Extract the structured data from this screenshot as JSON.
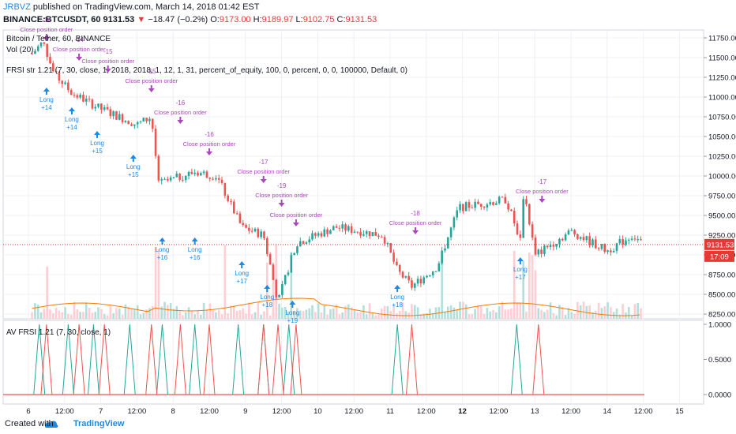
{
  "header": {
    "user": "JRBVZ",
    "published": "published on TradingView.com, March 14, 2018 01:42 EST",
    "symbol": "BINANCE:BTCUSDT, 60",
    "last": "9131.53",
    "change": "−18.47 (−0.2%)",
    "o_label": "O:",
    "o": "9173.00",
    "h_label": "H:",
    "h": "9189.97",
    "l_label": "L:",
    "l": "9102.75",
    "c_label": "C:",
    "c": "9131.53"
  },
  "overlays": {
    "pair": "Bitcoin / Tether, 60, BINANCE",
    "vol": "Vol (20)",
    "strategy": "FRSI str 1.21 (7, 30, close, 1, 2018, 2018, 1, 12, 1, 31, percent_of_equity, 100, 0, percent, 0, 0, 100000, Default, 0)",
    "indicator": "AV FRSI 1.21 (7, 30, close, 1)"
  },
  "price_axis": {
    "ticks": [
      "11750.00",
      "11500.00",
      "11250.00",
      "11000.00",
      "10750.00",
      "10500.00",
      "10250.00",
      "10000.00",
      "9750.00",
      "9500.00",
      "9250.00",
      "9000.00",
      "8750.00",
      "8500.00",
      "8250.00"
    ],
    "current_price": "9131.53",
    "countdown": "17:09"
  },
  "osc_axis": {
    "ticks": [
      "1.0000",
      "0.5000",
      "0.0000"
    ]
  },
  "time_axis": [
    "6",
    "12:00",
    "7",
    "12:00",
    "8",
    "12:00",
    "9",
    "12:00",
    "10",
    "12:00",
    "11",
    "12:00",
    "12",
    "12:00",
    "13",
    "12:00",
    "14",
    "12:00",
    "15"
  ],
  "chart_data": {
    "type": "candlestick",
    "title": "Bitcoin / Tether, 60, BINANCE",
    "ylim": [
      8100,
      11900
    ],
    "price_path_keypoints": [
      {
        "day": 6.05,
        "price": 11550
      },
      {
        "day": 6.2,
        "price": 11700
      },
      {
        "day": 6.35,
        "price": 11300
      },
      {
        "day": 6.6,
        "price": 11050
      },
      {
        "day": 7.0,
        "price": 10850
      },
      {
        "day": 7.5,
        "price": 10650
      },
      {
        "day": 7.7,
        "price": 10750
      },
      {
        "day": 7.8,
        "price": 9900
      },
      {
        "day": 8.3,
        "price": 10050
      },
      {
        "day": 8.6,
        "price": 10000
      },
      {
        "day": 8.95,
        "price": 9350
      },
      {
        "day": 9.25,
        "price": 9250
      },
      {
        "day": 9.45,
        "price": 8400
      },
      {
        "day": 9.7,
        "price": 9150
      },
      {
        "day": 10.25,
        "price": 9350
      },
      {
        "day": 10.9,
        "price": 9250
      },
      {
        "day": 11.1,
        "price": 8800
      },
      {
        "day": 11.3,
        "price": 8600
      },
      {
        "day": 11.65,
        "price": 8850
      },
      {
        "day": 11.95,
        "price": 9600
      },
      {
        "day": 12.6,
        "price": 9700
      },
      {
        "day": 12.85,
        "price": 9850
      },
      {
        "day": 12.8,
        "price": 9200
      },
      {
        "day": 13.0,
        "price": 9000
      },
      {
        "day": 13.5,
        "price": 9300
      },
      {
        "day": 14.0,
        "price": 9050
      },
      {
        "day": 14.35,
        "price": 9250
      },
      {
        "day": 14.5,
        "price": 9130
      }
    ],
    "trade_signals": [
      {
        "day": 6.25,
        "price": 11300,
        "side": "long",
        "label": "Long",
        "qty": "+14"
      },
      {
        "day": 6.25,
        "price": 11650,
        "side": "close",
        "label": "Close position order",
        "qty": "-14"
      },
      {
        "day": 6.6,
        "price": 11050,
        "side": "long",
        "label": "Long",
        "qty": "+14"
      },
      {
        "day": 6.7,
        "price": 11400,
        "side": "close",
        "label": "Close position order",
        "qty": "-14"
      },
      {
        "day": 6.95,
        "price": 10750,
        "side": "long",
        "label": "Long",
        "qty": "+15"
      },
      {
        "day": 7.1,
        "price": 11250,
        "side": "close",
        "label": "Close position order",
        "qty": "-15"
      },
      {
        "day": 7.45,
        "price": 10450,
        "side": "long",
        "label": "Long",
        "qty": "+15"
      },
      {
        "day": 7.7,
        "price": 11000,
        "side": "close",
        "label": "Close position order",
        "qty": "-15"
      },
      {
        "day": 7.85,
        "price": 9400,
        "side": "long",
        "label": "Long",
        "qty": "+16"
      },
      {
        "day": 8.1,
        "price": 10600,
        "side": "close",
        "label": "Close position order",
        "qty": "-16"
      },
      {
        "day": 8.3,
        "price": 9400,
        "side": "long",
        "label": "Long",
        "qty": "+16"
      },
      {
        "day": 8.5,
        "price": 10200,
        "side": "close",
        "label": "Close position order",
        "qty": "-16"
      },
      {
        "day": 8.95,
        "price": 9100,
        "side": "long",
        "label": "Long",
        "qty": "+17"
      },
      {
        "day": 9.25,
        "price": 9850,
        "side": "close",
        "label": "Close position order",
        "qty": "-17"
      },
      {
        "day": 9.3,
        "price": 8800,
        "side": "long",
        "label": "Long",
        "qty": "+18"
      },
      {
        "day": 9.5,
        "price": 9550,
        "side": "close",
        "label": "Close position order",
        "qty": "-19"
      },
      {
        "day": 9.65,
        "price": 8600,
        "side": "long",
        "label": "Long",
        "qty": "+19"
      },
      {
        "day": 9.7,
        "price": 9300,
        "side": "close",
        "label": "Close position order",
        "qty": ""
      },
      {
        "day": 11.1,
        "price": 8800,
        "side": "long",
        "label": "Long",
        "qty": "+18"
      },
      {
        "day": 11.35,
        "price": 9200,
        "side": "close",
        "label": "Close position order",
        "qty": "-18"
      },
      {
        "day": 12.8,
        "price": 9150,
        "side": "long",
        "label": "Long",
        "qty": "+17"
      },
      {
        "day": 13.1,
        "price": 9600,
        "side": "close",
        "label": "Close position order",
        "qty": "-17"
      }
    ],
    "oscillator": {
      "name": "AV FRSI 1.21 (7, 30, close, 1)",
      "ylim": [
        0,
        1
      ],
      "baseline": 0,
      "green_spikes_day": [
        6.15,
        6.55,
        6.9,
        7.4,
        7.85,
        8.3,
        8.9,
        9.25,
        9.6,
        11.1,
        12.75
      ],
      "red_spikes_day": [
        6.25,
        6.7,
        7.05,
        7.7,
        8.1,
        8.5,
        9.25,
        9.45,
        9.7,
        11.3,
        13.05
      ]
    }
  },
  "footer": {
    "created_with": "Created with",
    "brand": "TradingView"
  },
  "colors": {
    "up": "#26a69a",
    "down": "#ef5350",
    "volume_up": "#b2dfdb",
    "volume_down": "#ffcdd2",
    "long": "#1e88e5",
    "close": "#ab47bc",
    "ma": "#f57c00",
    "price_line": "#e53935"
  }
}
